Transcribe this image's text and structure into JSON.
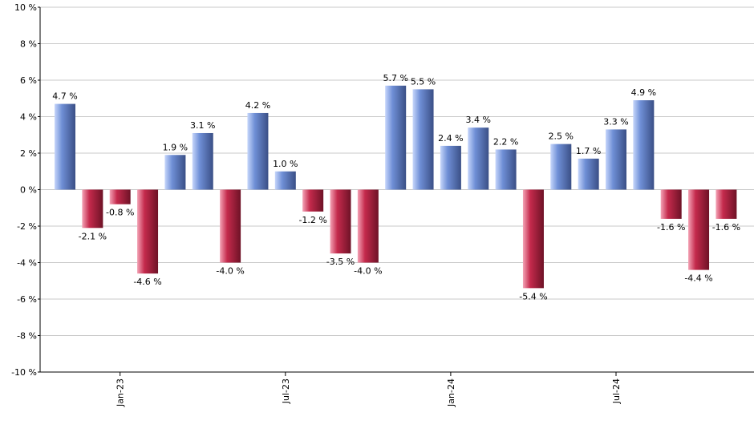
{
  "chart_data": {
    "type": "bar",
    "categories": [
      null,
      null,
      "Jan-23",
      null,
      null,
      null,
      null,
      null,
      "Jul-23",
      null,
      null,
      null,
      null,
      null,
      "Jan-24",
      null,
      null,
      null,
      null,
      null,
      "Jul-24",
      null,
      null,
      null,
      null
    ],
    "values": [
      4.7,
      -2.1,
      -0.8,
      -4.6,
      1.9,
      3.1,
      -4.0,
      4.2,
      1.0,
      -1.2,
      -3.5,
      -4.0,
      5.7,
      5.5,
      2.4,
      3.4,
      2.2,
      -5.4,
      2.5,
      1.7,
      3.3,
      4.9,
      -1.6,
      -4.4,
      -1.6
    ],
    "value_labels": [
      "4.7 %",
      "-2.1 %",
      "-0.8 %",
      "-4.6 %",
      "1.9 %",
      "3.1 %",
      "-4.0 %",
      "4.2 %",
      "1.0 %",
      "-1.2 %",
      "-3.5 %",
      "-4.0 %",
      "5.7 %",
      "5.5 %",
      "2.4 %",
      "3.4 %",
      "2.2 %",
      "-5.4 %",
      "2.5 %",
      "1.7 %",
      "3.3 %",
      "4.9 %",
      "-1.6 %",
      "-4.4 %",
      "-1.6 %"
    ],
    "positive_color": "#6f8fd6",
    "negative_color": "#c42a4c",
    "ylim": [
      -10,
      10
    ],
    "yticks": [
      {
        "value": -10,
        "label": "-10 %"
      },
      {
        "value": -8,
        "label": "-8 %"
      },
      {
        "value": -6,
        "label": "-6 %"
      },
      {
        "value": -4,
        "label": "-4 %"
      },
      {
        "value": -2,
        "label": "-2 %"
      },
      {
        "value": 0,
        "label": "0 %"
      },
      {
        "value": 2,
        "label": "2 %"
      },
      {
        "value": 4,
        "label": "4 %"
      },
      {
        "value": 6,
        "label": "6 %"
      },
      {
        "value": 8,
        "label": "8 %"
      },
      {
        "value": 10,
        "label": "10 %"
      }
    ],
    "grid": true
  }
}
